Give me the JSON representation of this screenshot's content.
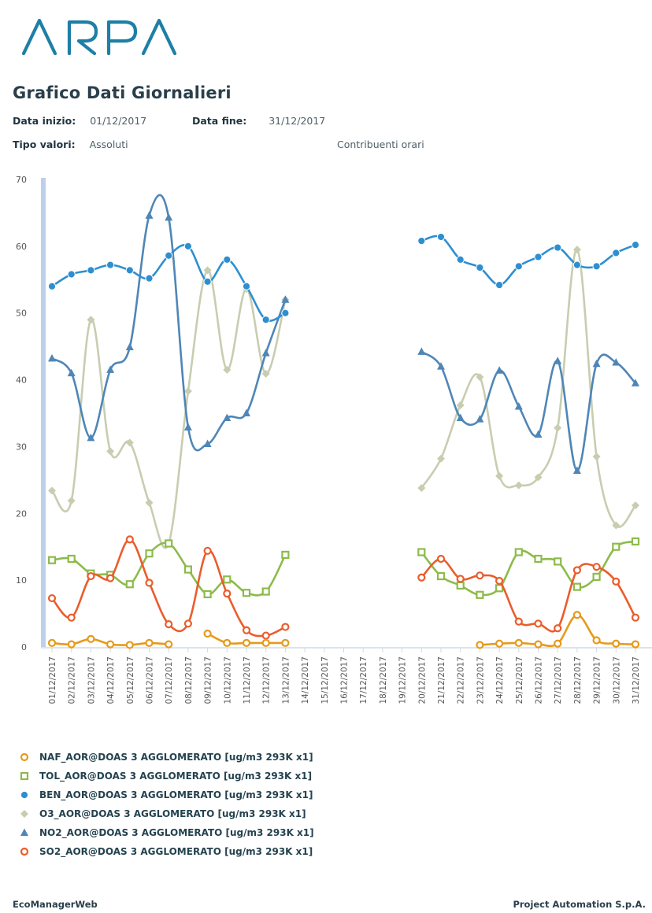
{
  "brand": {
    "logo_text": "ARPA",
    "logo_color": "#1e7fa6"
  },
  "header": {
    "title": "Grafico Dati Giornalieri",
    "start_label": "Data inizio:",
    "start_value": "01/12/2017",
    "end_label": "Data fine:",
    "end_value": "31/12/2017",
    "type_label": "Tipo valori:",
    "type_value": "Assoluti",
    "contrib_label": "Contribuenti orari"
  },
  "footer": {
    "left": "EcoManagerWeb",
    "right": "Project Automation S.p.A."
  },
  "chart_data": {
    "type": "line",
    "categories": [
      "01/12/2017",
      "02/12/2017",
      "03/12/2017",
      "04/12/2017",
      "05/12/2017",
      "06/12/2017",
      "07/12/2017",
      "08/12/2017",
      "09/12/2017",
      "10/12/2017",
      "11/12/2017",
      "12/12/2017",
      "13/12/2017",
      "14/12/2017",
      "15/12/2017",
      "16/12/2017",
      "17/12/2017",
      "18/12/2017",
      "19/12/2017",
      "20/12/2017",
      "21/12/2017",
      "22/12/2017",
      "23/12/2017",
      "24/12/2017",
      "25/12/2017",
      "26/12/2017",
      "27/12/2017",
      "28/12/2017",
      "29/12/2017",
      "30/12/2017",
      "31/12/2017"
    ],
    "ylim": [
      0,
      70
    ],
    "yticks": [
      0,
      10,
      20,
      30,
      40,
      50,
      60,
      70
    ],
    "grid": false,
    "legend_position": "bottom",
    "series": [
      {
        "name": "NAF_AOR@DOAS 3 AGGLOMERATO [ug/m3 293K x1]",
        "color": "#e69a1a",
        "marker": "circle-open",
        "values": [
          0.6,
          0.4,
          1.2,
          0.4,
          0.3,
          0.6,
          0.4,
          null,
          2.0,
          0.6,
          0.6,
          0.6,
          0.6,
          null,
          null,
          null,
          null,
          null,
          null,
          null,
          null,
          null,
          0.3,
          0.5,
          0.6,
          0.4,
          0.5,
          4.8,
          1.0,
          0.5,
          0.4
        ]
      },
      {
        "name": "TOL_AOR@DOAS 3 AGGLOMERATO [ug/m3 293K x1]",
        "color": "#8cbb4a",
        "marker": "square-open",
        "values": [
          13.0,
          13.2,
          11.0,
          10.8,
          9.4,
          14.0,
          15.5,
          11.6,
          7.9,
          10.1,
          8.1,
          8.3,
          13.8,
          null,
          null,
          null,
          null,
          null,
          null,
          14.2,
          10.6,
          9.2,
          7.8,
          8.8,
          14.2,
          13.2,
          12.8,
          9.0,
          10.5,
          15.0,
          15.8
        ]
      },
      {
        "name": "BEN_AOR@DOAS 3 AGGLOMERATO [ug/m3 293K x1]",
        "color": "#2e8fd0",
        "marker": "circle-filled",
        "values": [
          54.0,
          55.8,
          56.4,
          57.2,
          56.4,
          55.2,
          58.6,
          60.0,
          54.7,
          58.0,
          54.0,
          49.0,
          50.0,
          null,
          null,
          null,
          null,
          null,
          null,
          60.8,
          61.4,
          58.0,
          56.8,
          54.2,
          57.0,
          58.4,
          59.8,
          57.2,
          57.0,
          59.0,
          60.2
        ]
      },
      {
        "name": "O3_AOR@DOAS 3 AGGLOMERATO [ug/m3 293K x1]",
        "color": "#c8cdb0",
        "marker": "diamond-filled",
        "values": [
          23.4,
          21.9,
          49.0,
          29.3,
          30.6,
          21.6,
          15.5,
          38.3,
          56.4,
          41.5,
          53.6,
          40.9,
          52.0,
          null,
          null,
          null,
          null,
          null,
          null,
          23.8,
          28.2,
          36.2,
          40.4,
          25.6,
          24.2,
          25.4,
          32.8,
          59.5,
          28.5,
          18.2,
          21.2
        ]
      },
      {
        "name": "NO2_AOR@DOAS 3 AGGLOMERATO [ug/m3 293K x1]",
        "color": "#4f86b7",
        "marker": "triangle-filled",
        "values": [
          43.2,
          41.0,
          31.3,
          41.5,
          44.9,
          64.6,
          64.3,
          32.9,
          30.4,
          34.3,
          35.0,
          44.0,
          52.0,
          null,
          null,
          null,
          null,
          null,
          null,
          44.2,
          42.0,
          34.3,
          34.1,
          41.4,
          36.0,
          31.8,
          42.8,
          26.4,
          42.4,
          42.6,
          39.5
        ]
      },
      {
        "name": "SO2_AOR@DOAS 3 AGGLOMERATO [ug/m3 293K x1]",
        "color": "#ea5d2c",
        "marker": "circle-open",
        "values": [
          7.3,
          4.4,
          10.6,
          10.3,
          16.1,
          9.6,
          3.4,
          3.5,
          14.4,
          8.0,
          2.5,
          1.7,
          3.0,
          null,
          null,
          null,
          null,
          null,
          null,
          10.4,
          13.2,
          10.2,
          10.7,
          9.9,
          3.8,
          3.5,
          2.8,
          11.5,
          12.0,
          9.8,
          4.4
        ]
      }
    ]
  }
}
